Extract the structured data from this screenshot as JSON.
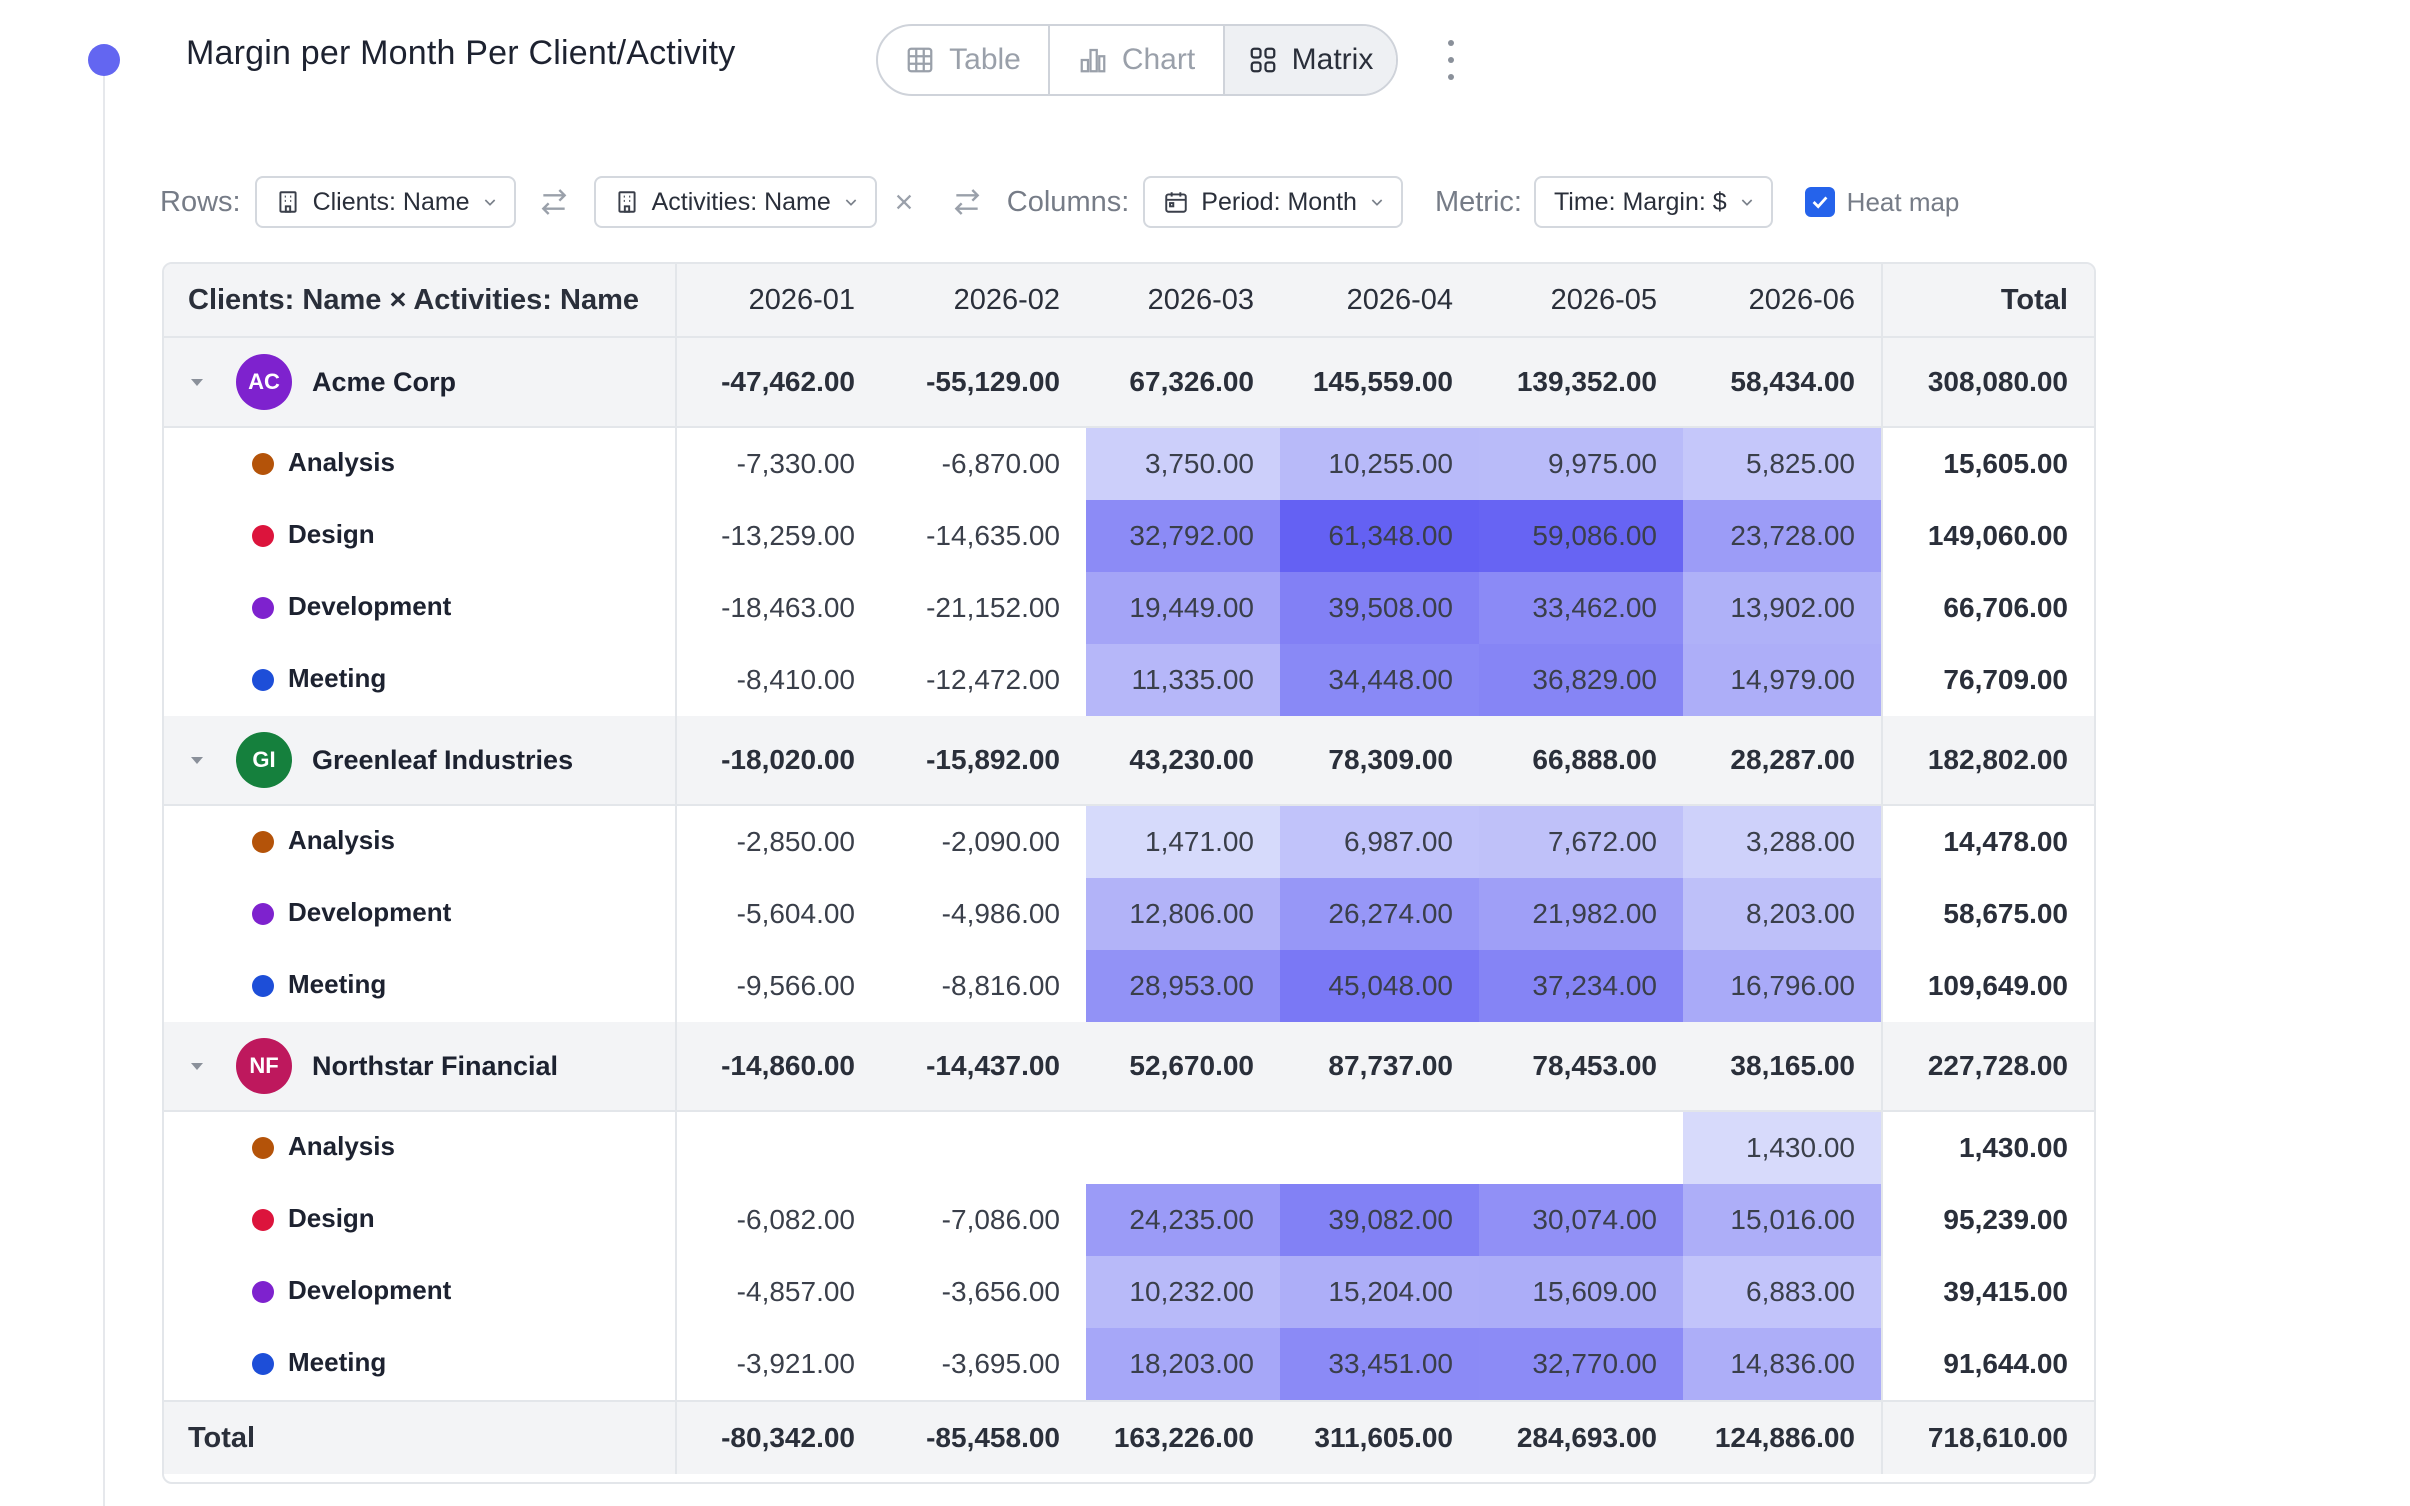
{
  "page": {
    "title": "Margin per Month Per Client/Activity",
    "views": [
      {
        "label": "Table",
        "icon": "table-icon",
        "active": false
      },
      {
        "label": "Chart",
        "icon": "bar-chart-icon",
        "active": false
      },
      {
        "label": "Matrix",
        "icon": "grid-icon",
        "active": true
      }
    ]
  },
  "controls": {
    "rows_label": "Rows:",
    "row_dim_1": "Clients: Name",
    "row_dim_2": "Activities: Name",
    "columns_label": "Columns:",
    "column_dim": "Period: Month",
    "metric_label": "Metric:",
    "metric": "Time: Margin: $",
    "heatmap_label": "Heat map",
    "heatmap_checked": true
  },
  "matrix": {
    "corner_label": "Clients: Name × Activities: Name",
    "columns": [
      "2026-01",
      "2026-02",
      "2026-03",
      "2026-04",
      "2026-05",
      "2026-06"
    ],
    "total_label": "Total",
    "groups": [
      {
        "name": "Acme Corp",
        "initials": "AC",
        "avatar_color": "#7e22ce",
        "values": [
          "-47,462.00",
          "-55,129.00",
          "67,326.00",
          "145,559.00",
          "139,352.00",
          "58,434.00"
        ],
        "total": "308,080.00",
        "activities": [
          {
            "name": "Analysis",
            "dot_color": "#b45309",
            "values": [
              "-7,330.00",
              "-6,870.00",
              "3,750.00",
              "10,255.00",
              "9,975.00",
              "5,825.00"
            ],
            "total": "15,605.00"
          },
          {
            "name": "Design",
            "dot_color": "#dc143c",
            "values": [
              "-13,259.00",
              "-14,635.00",
              "32,792.00",
              "61,348.00",
              "59,086.00",
              "23,728.00"
            ],
            "total": "149,060.00"
          },
          {
            "name": "Development",
            "dot_color": "#7e22ce",
            "values": [
              "-18,463.00",
              "-21,152.00",
              "19,449.00",
              "39,508.00",
              "33,462.00",
              "13,902.00"
            ],
            "total": "66,706.00"
          },
          {
            "name": "Meeting",
            "dot_color": "#1d4ed8",
            "values": [
              "-8,410.00",
              "-12,472.00",
              "11,335.00",
              "34,448.00",
              "36,829.00",
              "14,979.00"
            ],
            "total": "76,709.00"
          }
        ]
      },
      {
        "name": "Greenleaf Industries",
        "initials": "GI",
        "avatar_color": "#15803d",
        "values": [
          "-18,020.00",
          "-15,892.00",
          "43,230.00",
          "78,309.00",
          "66,888.00",
          "28,287.00"
        ],
        "total": "182,802.00",
        "activities": [
          {
            "name": "Analysis",
            "dot_color": "#b45309",
            "values": [
              "-2,850.00",
              "-2,090.00",
              "1,471.00",
              "6,987.00",
              "7,672.00",
              "3,288.00"
            ],
            "total": "14,478.00"
          },
          {
            "name": "Development",
            "dot_color": "#7e22ce",
            "values": [
              "-5,604.00",
              "-4,986.00",
              "12,806.00",
              "26,274.00",
              "21,982.00",
              "8,203.00"
            ],
            "total": "58,675.00"
          },
          {
            "name": "Meeting",
            "dot_color": "#1d4ed8",
            "values": [
              "-9,566.00",
              "-8,816.00",
              "28,953.00",
              "45,048.00",
              "37,234.00",
              "16,796.00"
            ],
            "total": "109,649.00"
          }
        ]
      },
      {
        "name": "Northstar Financial",
        "initials": "NF",
        "avatar_color": "#be185d",
        "values": [
          "-14,860.00",
          "-14,437.00",
          "52,670.00",
          "87,737.00",
          "78,453.00",
          "38,165.00"
        ],
        "total": "227,728.00",
        "activities": [
          {
            "name": "Analysis",
            "dot_color": "#b45309",
            "values": [
              "",
              "",
              "",
              "",
              "",
              "1,430.00"
            ],
            "total": "1,430.00"
          },
          {
            "name": "Design",
            "dot_color": "#dc143c",
            "values": [
              "-6,082.00",
              "-7,086.00",
              "24,235.00",
              "39,082.00",
              "30,074.00",
              "15,016.00"
            ],
            "total": "95,239.00"
          },
          {
            "name": "Development",
            "dot_color": "#7e22ce",
            "values": [
              "-4,857.00",
              "-3,656.00",
              "10,232.00",
              "15,204.00",
              "15,609.00",
              "6,883.00"
            ],
            "total": "39,415.00"
          },
          {
            "name": "Meeting",
            "dot_color": "#1d4ed8",
            "values": [
              "-3,921.00",
              "-3,695.00",
              "18,203.00",
              "33,451.00",
              "32,770.00",
              "14,836.00"
            ],
            "total": "91,644.00"
          }
        ]
      }
    ],
    "grand_total": {
      "label": "Total",
      "values": [
        "-80,342.00",
        "-85,458.00",
        "163,226.00",
        "311,605.00",
        "284,693.00",
        "124,886.00"
      ],
      "total": "718,610.00"
    }
  }
}
